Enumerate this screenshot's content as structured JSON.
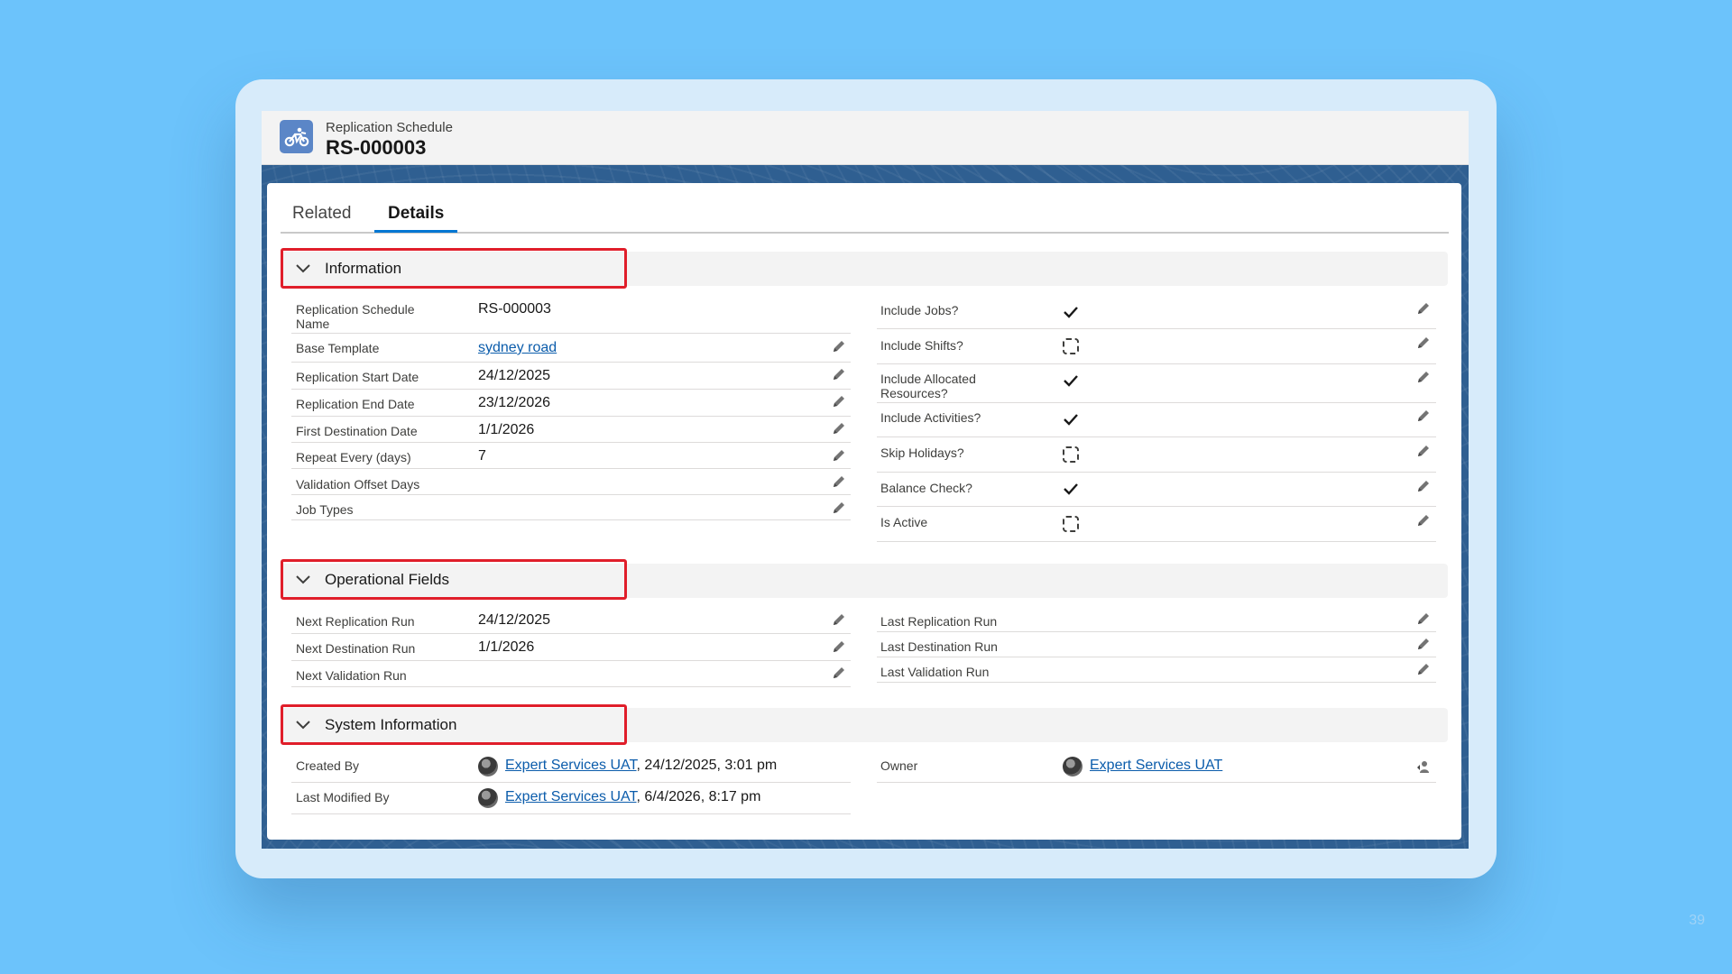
{
  "header": {
    "object_type": "Replication Schedule",
    "record_name": "RS-000003",
    "icon": "motorbike-icon"
  },
  "tabs": [
    {
      "label": "Related",
      "active": false
    },
    {
      "label": "Details",
      "active": true
    }
  ],
  "sections": {
    "information": {
      "title": "Information",
      "left": [
        {
          "label": "Replication Schedule Name",
          "value": "RS-000003",
          "editable": false
        },
        {
          "label": "Base Template",
          "value": "sydney road",
          "link": true,
          "editable": true
        },
        {
          "label": "Replication Start Date",
          "value": "24/12/2025",
          "editable": true
        },
        {
          "label": "Replication End Date",
          "value": "23/12/2026",
          "editable": true
        },
        {
          "label": "First Destination Date",
          "value": "1/1/2026",
          "editable": true
        },
        {
          "label": "Repeat Every (days)",
          "value": "7",
          "editable": true
        },
        {
          "label": "Validation Offset Days",
          "value": "",
          "editable": true
        },
        {
          "label": "Job Types",
          "value": "",
          "editable": true
        }
      ],
      "right": [
        {
          "label": "Include Jobs?",
          "checked": true
        },
        {
          "label": "Include Shifts?",
          "checked": false
        },
        {
          "label": "Include Allocated Resources?",
          "checked": true
        },
        {
          "label": "Include Activities?",
          "checked": true
        },
        {
          "label": "Skip Holidays?",
          "checked": false
        },
        {
          "label": "Balance Check?",
          "checked": true
        },
        {
          "label": "Is Active",
          "checked": false
        }
      ]
    },
    "operational": {
      "title": "Operational Fields",
      "left": [
        {
          "label": "Next Replication Run",
          "value": "24/12/2025"
        },
        {
          "label": "Next Destination Run",
          "value": "1/1/2026"
        },
        {
          "label": "Next Validation Run",
          "value": ""
        }
      ],
      "right": [
        {
          "label": "Last Replication Run",
          "value": ""
        },
        {
          "label": "Last Destination Run",
          "value": ""
        },
        {
          "label": "Last Validation Run",
          "value": ""
        }
      ]
    },
    "system": {
      "title": "System Information",
      "created_by": {
        "label": "Created By",
        "user": "Expert Services UAT",
        "stamp": ", 24/12/2025, 3:01 pm"
      },
      "modified_by": {
        "label": "Last Modified By",
        "user": "Expert Services UAT",
        "stamp": ", 6/4/2026, 8:17 pm"
      },
      "owner": {
        "label": "Owner",
        "user": "Expert Services UAT"
      }
    }
  },
  "page_number": "39",
  "colors": {
    "background": "#6cc3fb",
    "accent": "#0176d3",
    "link": "#0b5cab",
    "highlight": "#e01e2a"
  }
}
